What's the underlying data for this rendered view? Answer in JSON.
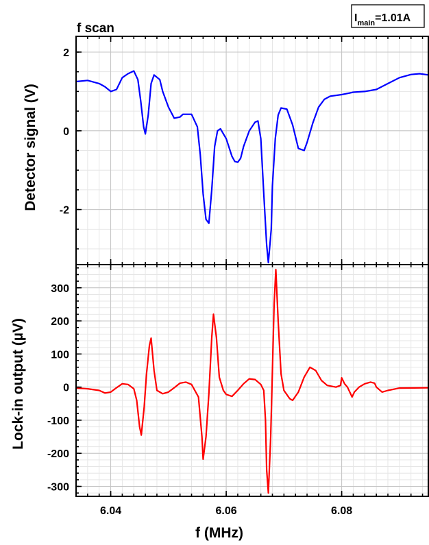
{
  "chart_data": [
    {
      "type": "line",
      "title": "f scan",
      "annotation": "I_main=1.01A",
      "xlabel": "f (MHz)",
      "ylabel": "Detector signal (V)",
      "xlim": [
        6.034,
        6.095
      ],
      "ylim": [
        -3.4,
        2.4
      ],
      "x_ticks": [
        6.04,
        6.06,
        6.08
      ],
      "y_ticks": [
        -2,
        0,
        2
      ],
      "grid": true,
      "series": [
        {
          "color": "#0000ff",
          "points": [
            [
              6.034,
              1.25
            ],
            [
              6.036,
              1.28
            ],
            [
              6.038,
              1.2
            ],
            [
              6.039,
              1.12
            ],
            [
              6.04,
              1.0
            ],
            [
              6.041,
              1.05
            ],
            [
              6.042,
              1.35
            ],
            [
              6.043,
              1.45
            ],
            [
              6.044,
              1.52
            ],
            [
              6.0447,
              1.3
            ],
            [
              6.0452,
              0.75
            ],
            [
              6.0457,
              0.1
            ],
            [
              6.046,
              -0.08
            ],
            [
              6.0465,
              0.4
            ],
            [
              6.047,
              1.2
            ],
            [
              6.0475,
              1.42
            ],
            [
              6.0485,
              1.3
            ],
            [
              6.049,
              1.0
            ],
            [
              6.05,
              0.6
            ],
            [
              6.051,
              0.32
            ],
            [
              6.052,
              0.35
            ],
            [
              6.0525,
              0.42
            ],
            [
              6.054,
              0.42
            ],
            [
              6.055,
              0.1
            ],
            [
              6.0555,
              -0.6
            ],
            [
              6.056,
              -1.6
            ],
            [
              6.0565,
              -2.25
            ],
            [
              6.057,
              -2.35
            ],
            [
              6.0575,
              -1.5
            ],
            [
              6.058,
              -0.4
            ],
            [
              6.0585,
              0.0
            ],
            [
              6.059,
              0.05
            ],
            [
              6.06,
              -0.2
            ],
            [
              6.061,
              -0.65
            ],
            [
              6.0615,
              -0.78
            ],
            [
              6.062,
              -0.8
            ],
            [
              6.0625,
              -0.7
            ],
            [
              6.063,
              -0.4
            ],
            [
              6.064,
              0.0
            ],
            [
              6.065,
              0.22
            ],
            [
              6.0655,
              0.25
            ],
            [
              6.066,
              -0.2
            ],
            [
              6.0665,
              -1.6
            ],
            [
              6.067,
              -2.9
            ],
            [
              6.0673,
              -3.35
            ],
            [
              6.0678,
              -2.5
            ],
            [
              6.068,
              -1.4
            ],
            [
              6.0685,
              -0.2
            ],
            [
              6.069,
              0.4
            ],
            [
              6.0695,
              0.58
            ],
            [
              6.0705,
              0.55
            ],
            [
              6.0715,
              0.15
            ],
            [
              6.0725,
              -0.45
            ],
            [
              6.0735,
              -0.5
            ],
            [
              6.074,
              -0.3
            ],
            [
              6.075,
              0.2
            ],
            [
              6.076,
              0.6
            ],
            [
              6.077,
              0.8
            ],
            [
              6.078,
              0.88
            ],
            [
              6.08,
              0.92
            ],
            [
              6.081,
              0.95
            ],
            [
              6.082,
              0.98
            ],
            [
              6.084,
              1.0
            ],
            [
              6.086,
              1.05
            ],
            [
              6.088,
              1.2
            ],
            [
              6.09,
              1.35
            ],
            [
              6.092,
              1.43
            ],
            [
              6.0935,
              1.45
            ],
            [
              6.095,
              1.42
            ]
          ]
        }
      ]
    },
    {
      "type": "line",
      "xlabel": "f (MHz)",
      "ylabel": "Lock-in output (µV)",
      "xlim": [
        6.034,
        6.095
      ],
      "ylim": [
        -330,
        370
      ],
      "x_ticks": [
        6.04,
        6.06,
        6.08
      ],
      "y_ticks": [
        -300,
        -200,
        -100,
        0,
        100,
        200,
        300
      ],
      "grid": true,
      "series": [
        {
          "color": "#ff0000",
          "points": [
            [
              6.034,
              -3
            ],
            [
              6.036,
              -5
            ],
            [
              6.038,
              -10
            ],
            [
              6.039,
              -18
            ],
            [
              6.04,
              -15
            ],
            [
              6.041,
              -2
            ],
            [
              6.042,
              10
            ],
            [
              6.043,
              8
            ],
            [
              6.044,
              -5
            ],
            [
              6.0445,
              -40
            ],
            [
              6.045,
              -120
            ],
            [
              6.0453,
              -145
            ],
            [
              6.0458,
              -60
            ],
            [
              6.0462,
              40
            ],
            [
              6.0467,
              125
            ],
            [
              6.047,
              148
            ],
            [
              6.0475,
              50
            ],
            [
              6.048,
              -10
            ],
            [
              6.049,
              -20
            ],
            [
              6.05,
              -15
            ],
            [
              6.051,
              -2
            ],
            [
              6.052,
              12
            ],
            [
              6.053,
              15
            ],
            [
              6.054,
              8
            ],
            [
              6.0552,
              -30
            ],
            [
              6.0558,
              -150
            ],
            [
              6.056,
              -218
            ],
            [
              6.0565,
              -150
            ],
            [
              6.057,
              -20
            ],
            [
              6.0575,
              150
            ],
            [
              6.0578,
              220
            ],
            [
              6.0583,
              150
            ],
            [
              6.0588,
              30
            ],
            [
              6.0595,
              -10
            ],
            [
              6.06,
              -22
            ],
            [
              6.061,
              -28
            ],
            [
              6.062,
              -10
            ],
            [
              6.063,
              10
            ],
            [
              6.064,
              25
            ],
            [
              6.065,
              23
            ],
            [
              6.066,
              8
            ],
            [
              6.0665,
              -10
            ],
            [
              6.0668,
              -100
            ],
            [
              6.067,
              -250
            ],
            [
              6.0673,
              -320
            ],
            [
              6.0677,
              -150
            ],
            [
              6.068,
              50
            ],
            [
              6.0683,
              250
            ],
            [
              6.0686,
              355
            ],
            [
              6.069,
              200
            ],
            [
              6.0695,
              40
            ],
            [
              6.07,
              -10
            ],
            [
              6.071,
              -35
            ],
            [
              6.0715,
              -40
            ],
            [
              6.0725,
              -15
            ],
            [
              6.0735,
              30
            ],
            [
              6.0745,
              60
            ],
            [
              6.0755,
              50
            ],
            [
              6.0765,
              20
            ],
            [
              6.0775,
              5
            ],
            [
              6.079,
              0
            ],
            [
              6.0798,
              5
            ],
            [
              6.08,
              28
            ],
            [
              6.0805,
              10
            ],
            [
              6.081,
              0
            ],
            [
              6.0818,
              -30
            ],
            [
              6.0822,
              -15
            ],
            [
              6.083,
              0
            ],
            [
              6.084,
              10
            ],
            [
              6.085,
              15
            ],
            [
              6.0857,
              12
            ],
            [
              6.086,
              0
            ],
            [
              6.087,
              -15
            ],
            [
              6.088,
              -10
            ],
            [
              6.09,
              -3
            ],
            [
              6.095,
              -2
            ]
          ]
        }
      ]
    }
  ]
}
